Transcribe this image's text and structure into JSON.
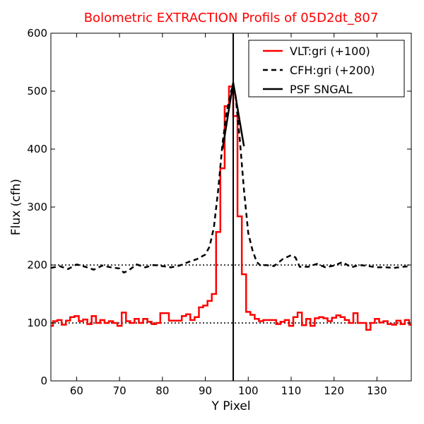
{
  "chart_data": {
    "type": "line",
    "title": "Bolometric EXTRACTION Profils of 05D2dt_807",
    "xlabel": "Y Pixel",
    "ylabel": "Flux (cfh)",
    "xlim": [
      54,
      138
    ],
    "ylim": [
      0,
      600
    ],
    "xticks": [
      60,
      70,
      80,
      90,
      100,
      110,
      120,
      130
    ],
    "yticks": [
      0,
      100,
      200,
      300,
      400,
      500,
      600
    ],
    "legend_position": "top-right",
    "grid": false,
    "reference_lines": [
      {
        "y": 100,
        "style": "dotted",
        "color": "#000000"
      },
      {
        "y": 200,
        "style": "dotted",
        "color": "#000000"
      }
    ],
    "series": [
      {
        "name": "VLT:gri (+100)",
        "style": "steps",
        "color": "#ff0000",
        "x": [
          54,
          55,
          56,
          57,
          58,
          59,
          60,
          61,
          62,
          63,
          64,
          65,
          66,
          67,
          68,
          69,
          70,
          71,
          72,
          73,
          74,
          75,
          76,
          77,
          78,
          79,
          80,
          81,
          82,
          83,
          84,
          85,
          86,
          87,
          88,
          89,
          90,
          91,
          92,
          93,
          94,
          95,
          96,
          97,
          98,
          99,
          100,
          101,
          102,
          103,
          104,
          105,
          106,
          107,
          108,
          109,
          110,
          111,
          112,
          113,
          114,
          115,
          116,
          117,
          118,
          119,
          120,
          121,
          122,
          123,
          124,
          125,
          126,
          127,
          128,
          129,
          130,
          131,
          132,
          133,
          134,
          135,
          136,
          137,
          138
        ],
        "y": [
          95,
          103,
          105,
          97,
          104,
          110,
          112,
          103,
          106,
          98,
          112,
          100,
          105,
          100,
          103,
          100,
          95,
          118,
          103,
          100,
          107,
          100,
          107,
          102,
          98,
          100,
          117,
          117,
          104,
          104,
          104,
          112,
          115,
          105,
          110,
          127,
          130,
          138,
          150,
          257,
          367,
          474,
          508,
          457,
          284,
          184,
          119,
          114,
          107,
          103,
          105,
          105,
          105,
          98,
          102,
          105,
          95,
          110,
          118,
          96,
          107,
          95,
          108,
          110,
          108,
          103,
          109,
          113,
          110,
          105,
          100,
          117,
          100,
          100,
          88,
          100,
          107,
          101,
          103,
          98,
          97,
          104,
          98,
          105,
          97
        ]
      },
      {
        "name": "CFH:gri (+200)",
        "style": "dashed",
        "color": "#000000",
        "x": [
          54,
          56,
          58,
          60,
          62,
          64,
          66,
          68,
          70,
          71,
          72,
          74,
          76,
          78,
          80,
          82,
          84,
          86,
          88,
          90,
          91,
          92,
          93,
          94,
          95,
          96,
          96.5,
          97,
          98,
          99,
          100,
          101,
          102,
          103,
          104,
          106,
          108,
          110,
          111,
          112,
          114,
          116,
          118,
          120,
          122,
          124,
          126,
          128,
          130,
          132,
          134,
          136,
          138
        ],
        "y": [
          195,
          198,
          193,
          201,
          197,
          192,
          199,
          196,
          194,
          187,
          190,
          201,
          196,
          200,
          198,
          196,
          199,
          205,
          210,
          218,
          232,
          265,
          330,
          410,
          465,
          500,
          510,
          495,
          420,
          330,
          255,
          225,
          205,
          198,
          200,
          198,
          210,
          217,
          213,
          197,
          197,
          202,
          196,
          199,
          205,
          196,
          200,
          198,
          196,
          196,
          195,
          197,
          198
        ]
      },
      {
        "name": "PSF SNGAL",
        "style": "solid",
        "color": "#000000",
        "x": [
          94,
          96.5,
          99
        ],
        "y": [
          400,
          515,
          405
        ]
      }
    ],
    "vertical_line": {
      "x": 96.5,
      "color": "#000000"
    }
  }
}
